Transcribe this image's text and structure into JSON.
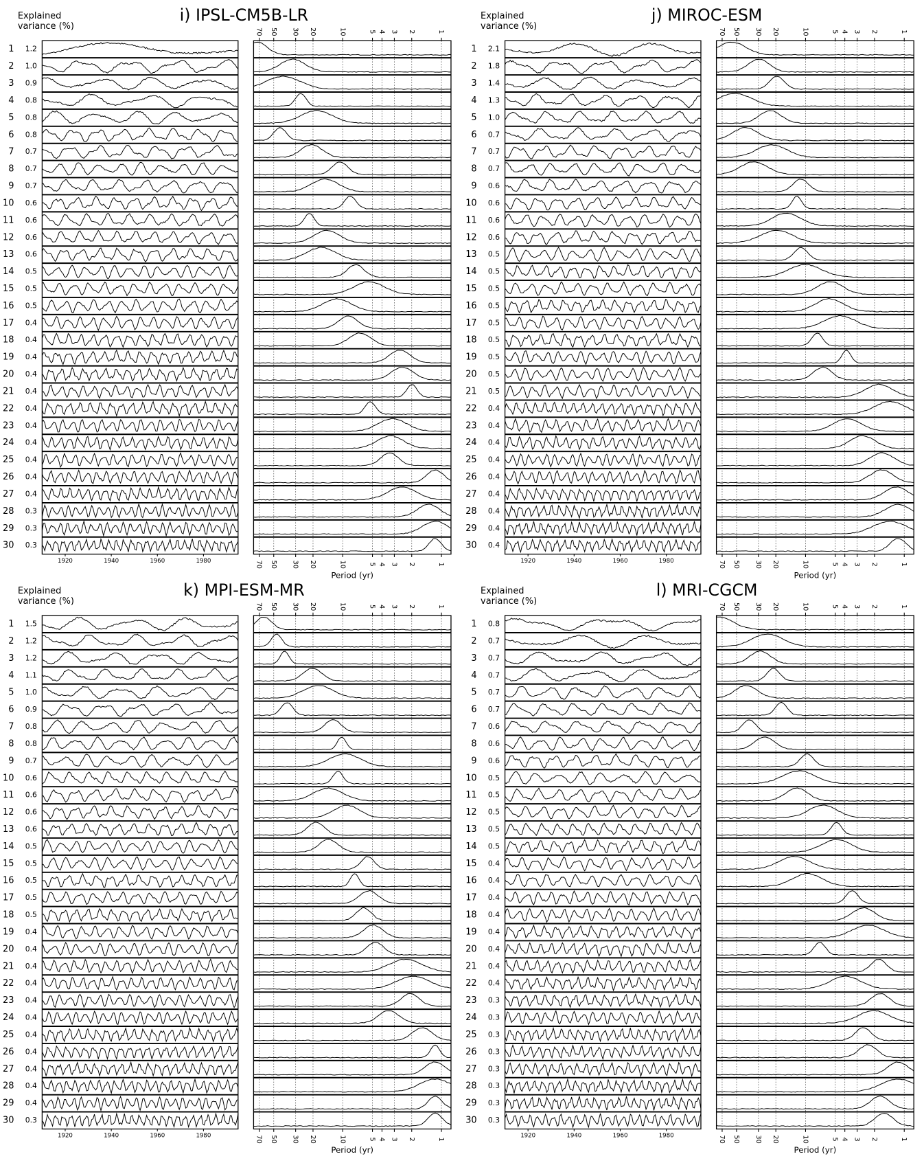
{
  "chart_data": [
    {
      "type": "pc-spectra",
      "title": "i) IPSL-CM5B-LR",
      "y_label": "Explained variance (%)",
      "x_label": "Period (yr)",
      "modes": [
        1,
        2,
        3,
        4,
        5,
        6,
        7,
        8,
        9,
        10,
        11,
        12,
        13,
        14,
        15,
        16,
        17,
        18,
        19,
        20,
        21,
        22,
        23,
        24,
        25,
        26,
        27,
        28,
        29,
        30
      ],
      "values": [
        1.2,
        1.0,
        0.9,
        0.8,
        0.8,
        0.8,
        0.7,
        0.7,
        0.7,
        0.6,
        0.6,
        0.6,
        0.6,
        0.5,
        0.5,
        0.5,
        0.4,
        0.4,
        0.4,
        0.4,
        0.4,
        0.4,
        0.4,
        0.4,
        0.4,
        0.4,
        0.4,
        0.3,
        0.3,
        0.3
      ],
      "value_labels": [
        "1.2",
        "1.0",
        "0.9",
        "0.8",
        "0.8",
        "0.8",
        "0.7",
        "0.7",
        "0.7",
        "0.6",
        "0.6",
        "0.6",
        "0.6",
        "0.5",
        "0.5",
        "0.5",
        "0.4",
        "0.4",
        "0.4",
        "0.4",
        "0.4",
        "0.4",
        "0.4",
        "0.4",
        "0.4",
        "0.4",
        "0.4",
        "0.3",
        "0.3",
        "0.3"
      ],
      "xlim": [
        1910,
        1995
      ],
      "xticks": [
        1920,
        1940,
        1960,
        1980
      ],
      "period_lim": [
        80,
        0.8
      ],
      "period_ticks": [
        70,
        50,
        30,
        20,
        10,
        5,
        4,
        3,
        2,
        1
      ],
      "period_log": true
    },
    {
      "type": "pc-spectra",
      "title": "j) MIROC-ESM",
      "y_label": "Explained variance (%)",
      "x_label": "Period (yr)",
      "modes": [
        1,
        2,
        3,
        4,
        5,
        6,
        7,
        8,
        9,
        10,
        11,
        12,
        13,
        14,
        15,
        16,
        17,
        18,
        19,
        20,
        21,
        22,
        23,
        24,
        25,
        26,
        27,
        28,
        29,
        30
      ],
      "values": [
        2.1,
        1.8,
        1.4,
        1.3,
        1.0,
        0.7,
        0.7,
        0.7,
        0.6,
        0.6,
        0.6,
        0.6,
        0.5,
        0.5,
        0.5,
        0.5,
        0.5,
        0.5,
        0.5,
        0.5,
        0.5,
        0.4,
        0.4,
        0.4,
        0.4,
        0.4,
        0.4,
        0.4,
        0.4,
        0.4
      ],
      "value_labels": [
        "2.1",
        "1.8",
        "1.4",
        "1.3",
        "1.0",
        "0.7",
        "0.7",
        "0.7",
        "0.6",
        "0.6",
        "0.6",
        "0.6",
        "0.5",
        "0.5",
        "0.5",
        "0.5",
        "0.5",
        "0.5",
        "0.5",
        "0.5",
        "0.5",
        "0.4",
        "0.4",
        "0.4",
        "0.4",
        "0.4",
        "0.4",
        "0.4",
        "0.4",
        "0.4"
      ],
      "xlim": [
        1910,
        1995
      ],
      "xticks": [
        1920,
        1940,
        1960,
        1980
      ],
      "period_lim": [
        80,
        0.8
      ],
      "period_ticks": [
        70,
        50,
        30,
        20,
        10,
        5,
        4,
        3,
        2,
        1
      ],
      "period_log": true
    },
    {
      "type": "pc-spectra",
      "title": "k) MPI-ESM-MR",
      "y_label": "Explained variance (%)",
      "x_label": "Period (yr)",
      "modes": [
        1,
        2,
        3,
        4,
        5,
        6,
        7,
        8,
        9,
        10,
        11,
        12,
        13,
        14,
        15,
        16,
        17,
        18,
        19,
        20,
        21,
        22,
        23,
        24,
        25,
        26,
        27,
        28,
        29,
        30
      ],
      "values": [
        1.5,
        1.2,
        1.2,
        1.1,
        1.0,
        0.9,
        0.8,
        0.8,
        0.7,
        0.6,
        0.6,
        0.6,
        0.6,
        0.5,
        0.5,
        0.5,
        0.5,
        0.5,
        0.4,
        0.4,
        0.4,
        0.4,
        0.4,
        0.4,
        0.4,
        0.4,
        0.4,
        0.4,
        0.4,
        0.3
      ],
      "value_labels": [
        "1.5",
        "1.2",
        "1.2",
        "1.1",
        "1.0",
        "0.9",
        "0.8",
        "0.8",
        "0.7",
        "0.6",
        "0.6",
        "0.6",
        "0.6",
        "0.5",
        "0.5",
        "0.5",
        "0.5",
        "0.5",
        "0.4",
        "0.4",
        "0.4",
        "0.4",
        "0.4",
        "0.4",
        "0.4",
        "0.4",
        "0.4",
        "0.4",
        "0.4",
        "0.3"
      ],
      "xlim": [
        1910,
        1995
      ],
      "xticks": [
        1920,
        1940,
        1960,
        1980
      ],
      "period_lim": [
        80,
        0.8
      ],
      "period_ticks": [
        70,
        50,
        30,
        20,
        10,
        5,
        4,
        3,
        2,
        1
      ],
      "period_log": true
    },
    {
      "type": "pc-spectra",
      "title": "l) MRI-CGCM",
      "y_label": "Explained variance (%)",
      "x_label": "Period (yr)",
      "modes": [
        1,
        2,
        3,
        4,
        5,
        6,
        7,
        8,
        9,
        10,
        11,
        12,
        13,
        14,
        15,
        16,
        17,
        18,
        19,
        20,
        21,
        22,
        23,
        24,
        25,
        26,
        27,
        28,
        29,
        30
      ],
      "values": [
        0.8,
        0.7,
        0.7,
        0.7,
        0.7,
        0.7,
        0.6,
        0.6,
        0.6,
        0.5,
        0.5,
        0.5,
        0.5,
        0.5,
        0.4,
        0.4,
        0.4,
        0.4,
        0.4,
        0.4,
        0.4,
        0.4,
        0.3,
        0.3,
        0.3,
        0.3,
        0.3,
        0.3,
        0.3,
        0.3
      ],
      "value_labels": [
        "0.8",
        "0.7",
        "0.7",
        "0.7",
        "0.7",
        "0.7",
        "0.6",
        "0.6",
        "0.6",
        "0.5",
        "0.5",
        "0.5",
        "0.5",
        "0.5",
        "0.4",
        "0.4",
        "0.4",
        "0.4",
        "0.4",
        "0.4",
        "0.4",
        "0.4",
        "0.3",
        "0.3",
        "0.3",
        "0.3",
        "0.3",
        "0.3",
        "0.3",
        "0.3"
      ],
      "xlim": [
        1910,
        1995
      ],
      "xticks": [
        1920,
        1940,
        1960,
        1980
      ],
      "period_lim": [
        80,
        0.8
      ],
      "period_ticks": [
        70,
        50,
        30,
        20,
        10,
        5,
        4,
        3,
        2,
        1
      ],
      "period_log": true
    }
  ]
}
